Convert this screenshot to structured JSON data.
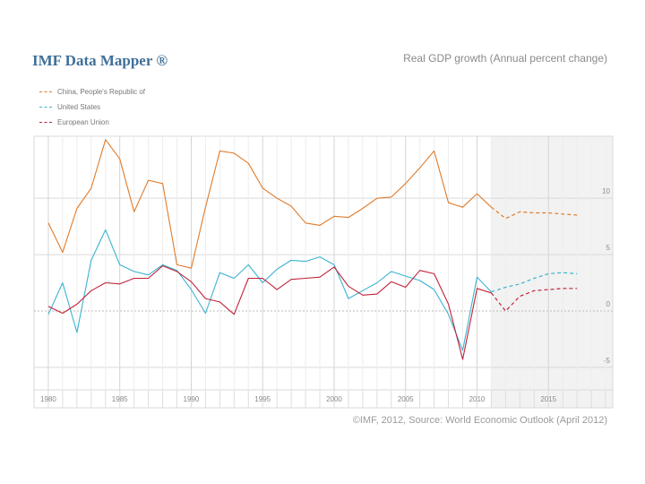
{
  "header": {
    "brand": "IMF Data Mapper ®",
    "subtitle": "Real GDP growth (Annual percent change)"
  },
  "footer": {
    "source": "©IMF, 2012, Source: World Economic Outlook (April 2012)"
  },
  "colors": {
    "china": "#e07b2a",
    "us": "#3bb3cf",
    "eu": "#c0233a",
    "grid": "#d9d9d9",
    "projection_shade": "#f2f2f2",
    "axis_text": "#8a8a8a"
  },
  "chart_data": {
    "type": "line",
    "title": "Real GDP growth (Annual percent change)",
    "xlabel": "",
    "ylabel": "",
    "x": [
      1980,
      1981,
      1982,
      1983,
      1984,
      1985,
      1986,
      1987,
      1988,
      1989,
      1990,
      1991,
      1992,
      1993,
      1994,
      1995,
      1996,
      1997,
      1998,
      1999,
      2000,
      2001,
      2002,
      2003,
      2004,
      2005,
      2006,
      2007,
      2008,
      2009,
      2010,
      2011,
      2012,
      2013,
      2014,
      2015,
      2016,
      2017
    ],
    "xlim": [
      1979,
      2019.5
    ],
    "ylim": [
      -7,
      15.5
    ],
    "yticks": [
      10,
      5,
      0,
      -5
    ],
    "ytick_labels": [
      "10",
      "5",
      "0",
      "-5"
    ],
    "xticks": [
      1980,
      1985,
      1990,
      1995,
      2000,
      2005,
      2010,
      2015
    ],
    "xtick_labels": [
      "1980",
      "1985",
      "1990",
      "1995",
      "2000",
      "2005",
      "2010",
      "2015"
    ],
    "grid": true,
    "projection_start": 2011,
    "series": [
      {
        "name": "China, People's Republic of",
        "key": "china",
        "values": [
          7.8,
          5.2,
          9.1,
          10.9,
          15.2,
          13.5,
          8.8,
          11.6,
          11.3,
          4.1,
          3.8,
          9.2,
          14.2,
          14.0,
          13.1,
          10.9,
          10.0,
          9.3,
          7.8,
          7.6,
          8.4,
          8.3,
          9.1,
          10.0,
          10.1,
          11.3,
          12.7,
          14.2,
          9.6,
          9.2,
          10.4,
          9.2,
          8.2,
          8.8,
          8.7,
          8.7,
          8.6,
          8.5
        ]
      },
      {
        "name": "United States",
        "key": "us",
        "values": [
          -0.3,
          2.5,
          -1.9,
          4.5,
          7.2,
          4.1,
          3.5,
          3.2,
          4.1,
          3.6,
          1.9,
          -0.2,
          3.4,
          2.9,
          4.1,
          2.5,
          3.7,
          4.5,
          4.4,
          4.8,
          4.1,
          1.1,
          1.8,
          2.5,
          3.5,
          3.1,
          2.7,
          1.9,
          -0.3,
          -3.5,
          3.0,
          1.7,
          2.1,
          2.4,
          2.9,
          3.3,
          3.4,
          3.3
        ]
      },
      {
        "name": "European Union",
        "key": "eu",
        "values": [
          0.4,
          -0.2,
          0.6,
          1.8,
          2.5,
          2.4,
          2.9,
          2.9,
          4.0,
          3.5,
          2.6,
          1.1,
          0.8,
          -0.3,
          2.9,
          2.9,
          1.9,
          2.8,
          2.9,
          3.0,
          3.9,
          2.2,
          1.4,
          1.5,
          2.6,
          2.1,
          3.6,
          3.3,
          0.6,
          -4.3,
          2.0,
          1.6,
          0.0,
          1.3,
          1.8,
          1.9,
          2.0,
          2.0
        ]
      }
    ]
  }
}
